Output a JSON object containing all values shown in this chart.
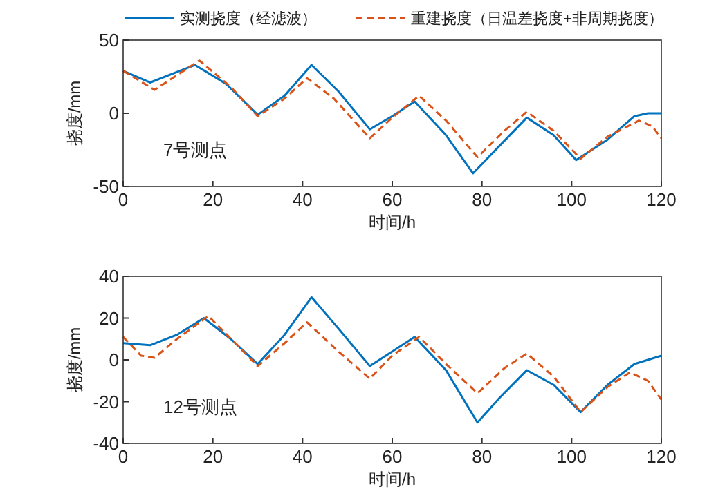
{
  "chart_data": [
    {
      "type": "line",
      "xlabel": "时间/h",
      "ylabel": "挠度/mm",
      "annotations": [
        "7号测点"
      ],
      "xlim": [
        0,
        120
      ],
      "ylim": [
        -50,
        50
      ],
      "xticks": [
        0,
        20,
        40,
        60,
        80,
        100,
        120
      ],
      "yticks": [
        -50,
        0,
        50
      ],
      "legend": "top",
      "grid": false,
      "series": [
        {
          "name": "实测挠度（经滤波）",
          "color": "#0072bd",
          "line_style": "solid",
          "x": [
            0,
            6,
            16,
            23,
            30,
            36,
            42,
            48,
            55,
            60,
            65,
            72,
            78,
            84,
            90,
            96,
            101,
            108,
            114,
            117,
            120
          ],
          "values": [
            29,
            21,
            33,
            20,
            -1,
            12,
            33,
            15,
            -11,
            -2,
            8,
            -15,
            -41,
            -22,
            -3,
            -15,
            -32,
            -18,
            -2,
            0,
            0
          ]
        },
        {
          "name": "重建挠度（日温差挠度+非周期挠度）",
          "color": "#d95319",
          "line_style": "dashed",
          "x": [
            0,
            7,
            17,
            24,
            30,
            36,
            41,
            47,
            55,
            60,
            66,
            72,
            79,
            85,
            90,
            96,
            102,
            108,
            115,
            118,
            120
          ],
          "values": [
            29,
            16,
            36,
            18,
            -2,
            10,
            24,
            10,
            -17,
            -3,
            12,
            -5,
            -30,
            -12,
            1,
            -12,
            -31,
            -16,
            -5,
            -9,
            -17
          ]
        }
      ]
    },
    {
      "type": "line",
      "xlabel": "时间/h",
      "ylabel": "挠度/mm",
      "annotations": [
        "12号测点"
      ],
      "xlim": [
        0,
        120
      ],
      "ylim": [
        -40,
        40
      ],
      "xticks": [
        0,
        20,
        40,
        60,
        80,
        100,
        120
      ],
      "yticks": [
        -40,
        -20,
        0,
        20,
        40
      ],
      "grid": false,
      "series": [
        {
          "color": "#0072bd",
          "line_style": "solid",
          "x": [
            0,
            6,
            12,
            18,
            24,
            30,
            36,
            42,
            48,
            55,
            60,
            65,
            72,
            79,
            84,
            90,
            96,
            102,
            108,
            114,
            120
          ],
          "values": [
            8,
            7,
            12,
            20,
            10,
            -2,
            12,
            30,
            15,
            -3,
            4,
            11,
            -5,
            -30,
            -18,
            -5,
            -12,
            -25,
            -12,
            -2,
            2
          ]
        },
        {
          "color": "#d95319",
          "line_style": "dashed",
          "x": [
            0,
            4,
            7,
            12,
            19,
            25,
            30,
            36,
            41,
            48,
            55,
            60,
            66,
            72,
            79,
            85,
            90,
            96,
            102,
            108,
            113,
            117,
            120
          ],
          "values": [
            11,
            2,
            1,
            10,
            21,
            8,
            -3,
            8,
            18,
            4,
            -9,
            2,
            11,
            -2,
            -16,
            -4,
            3,
            -8,
            -25,
            -13,
            -6,
            -10,
            -19
          ]
        }
      ]
    }
  ]
}
